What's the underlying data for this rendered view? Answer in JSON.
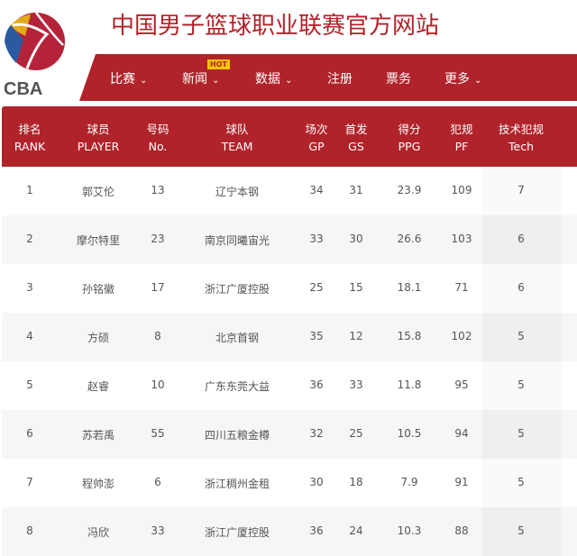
{
  "header": {
    "title": "中国男子篮球职业联赛官方网站",
    "logo_text": "CBA"
  },
  "nav": {
    "items": [
      {
        "label": "比赛",
        "has_dropdown": true
      },
      {
        "label": "新闻",
        "has_dropdown": true,
        "badge": "HOT"
      },
      {
        "label": "数据",
        "has_dropdown": true
      },
      {
        "label": "注册",
        "has_dropdown": false
      },
      {
        "label": "票务",
        "has_dropdown": false
      },
      {
        "label": "更多",
        "has_dropdown": true
      }
    ]
  },
  "table": {
    "columns": [
      {
        "cn": "排名",
        "en": "RANK"
      },
      {
        "cn": "球员",
        "en": "PLAYER"
      },
      {
        "cn": "号码",
        "en": "No."
      },
      {
        "cn": "球队",
        "en": "TEAM"
      },
      {
        "cn": "场次",
        "en": "GP"
      },
      {
        "cn": "首发",
        "en": "GS"
      },
      {
        "cn": "得分",
        "en": "PPG"
      },
      {
        "cn": "犯规",
        "en": "PF"
      },
      {
        "cn": "技术犯规",
        "en": "Tech"
      }
    ],
    "sorted_column": "Tech",
    "rows": [
      [
        "1",
        "郭艾伦",
        "13",
        "辽宁本钢",
        "34",
        "31",
        "23.9",
        "109",
        "7"
      ],
      [
        "2",
        "摩尔特里",
        "23",
        "南京同曦宙光",
        "33",
        "30",
        "26.6",
        "103",
        "6"
      ],
      [
        "3",
        "孙铭徽",
        "17",
        "浙江广厦控股",
        "25",
        "15",
        "18.1",
        "71",
        "6"
      ],
      [
        "4",
        "方硕",
        "8",
        "北京首钢",
        "35",
        "12",
        "15.8",
        "102",
        "5"
      ],
      [
        "5",
        "赵睿",
        "10",
        "广东东莞大益",
        "36",
        "33",
        "11.8",
        "95",
        "5"
      ],
      [
        "6",
        "苏若禹",
        "55",
        "四川五粮金樽",
        "32",
        "25",
        "10.5",
        "94",
        "5"
      ],
      [
        "7",
        "程帅澎",
        "6",
        "浙江稠州金租",
        "30",
        "18",
        "7.9",
        "91",
        "5"
      ],
      [
        "8",
        "冯欣",
        "33",
        "浙江广厦控股",
        "36",
        "24",
        "10.3",
        "88",
        "5"
      ]
    ]
  },
  "colors": {
    "brand_red": "#b0232a",
    "hot_badge": "#f5c400"
  }
}
